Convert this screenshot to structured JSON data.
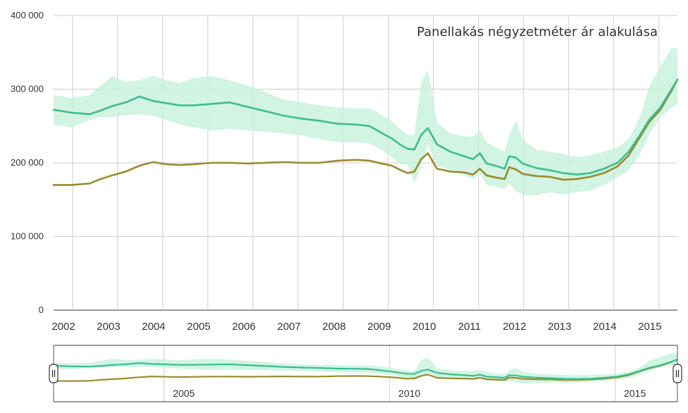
{
  "chart_data": {
    "type": "line",
    "title": "Panellakás négyzetméter ár alakulása",
    "xlabel": "",
    "ylabel": "",
    "xlim": [
      2002,
      2015.83
    ],
    "ylim": [
      0,
      400000
    ],
    "y_ticks": [
      0,
      100000,
      200000,
      300000,
      400000
    ],
    "y_tick_labels": [
      "0",
      "100 000",
      "200 000",
      "300 000",
      "400 000"
    ],
    "x_tick_labels": [
      "2002",
      "2003",
      "2004",
      "2005",
      "2006",
      "2007",
      "2008",
      "2009",
      "2010",
      "2011",
      "2012",
      "2013",
      "2014",
      "2015"
    ],
    "grid": true,
    "series": [
      {
        "name": "green",
        "color": "#3dbd8d",
        "x": [
          2002.0,
          2002.4,
          2002.8,
          2003.0,
          2003.3,
          2003.6,
          2003.9,
          2004.2,
          2004.5,
          2004.8,
          2005.1,
          2005.5,
          2005.9,
          2006.3,
          2006.7,
          2007.1,
          2007.5,
          2007.9,
          2008.3,
          2008.7,
          2009.0,
          2009.2,
          2009.5,
          2009.7,
          2009.85,
          2010.0,
          2010.15,
          2010.3,
          2010.5,
          2010.8,
          2011.1,
          2011.3,
          2011.45,
          2011.6,
          2011.8,
          2012.0,
          2012.1,
          2012.25,
          2012.4,
          2012.7,
          2013.0,
          2013.3,
          2013.6,
          2013.9,
          2014.2,
          2014.5,
          2014.75,
          2015.0,
          2015.2,
          2015.45,
          2015.7,
          2015.83
        ],
        "values": [
          272000,
          268000,
          266000,
          270000,
          277000,
          282000,
          290000,
          284000,
          281000,
          278000,
          278000,
          280000,
          282000,
          276000,
          270000,
          264000,
          260000,
          257000,
          253000,
          252000,
          250000,
          243000,
          233000,
          224000,
          219000,
          218000,
          238000,
          247000,
          225000,
          215000,
          209000,
          205000,
          213000,
          199000,
          196000,
          192000,
          209000,
          207000,
          199000,
          193000,
          190000,
          186000,
          184000,
          186000,
          192000,
          200000,
          215000,
          238000,
          258000,
          275000,
          300000,
          313000
        ]
      },
      {
        "name": "olive",
        "color": "#9b8a2c",
        "x": [
          2002.0,
          2002.4,
          2002.8,
          2003.0,
          2003.3,
          2003.6,
          2003.9,
          2004.2,
          2004.5,
          2004.8,
          2005.1,
          2005.5,
          2005.9,
          2006.3,
          2006.7,
          2007.1,
          2007.5,
          2007.9,
          2008.3,
          2008.7,
          2009.0,
          2009.2,
          2009.5,
          2009.7,
          2009.85,
          2010.0,
          2010.15,
          2010.3,
          2010.5,
          2010.8,
          2011.1,
          2011.3,
          2011.45,
          2011.6,
          2011.8,
          2012.0,
          2012.1,
          2012.25,
          2012.4,
          2012.7,
          2013.0,
          2013.3,
          2013.6,
          2013.9,
          2014.2,
          2014.5,
          2014.75,
          2015.0,
          2015.2,
          2015.45,
          2015.7,
          2015.83
        ],
        "values": [
          170000,
          170000,
          172000,
          177000,
          183000,
          188000,
          196000,
          201000,
          198000,
          197000,
          198000,
          200000,
          200000,
          199000,
          200000,
          201000,
          200000,
          200000,
          203000,
          204000,
          203000,
          200000,
          196000,
          190000,
          186000,
          188000,
          205000,
          213000,
          192000,
          188000,
          187000,
          184000,
          192000,
          183000,
          180000,
          178000,
          194000,
          191000,
          185000,
          182000,
          181000,
          177000,
          178000,
          181000,
          186000,
          195000,
          210000,
          235000,
          255000,
          272000,
          298000,
          313000
        ]
      }
    ],
    "confidence_band": {
      "color": "#c6f1dc",
      "x": [
        2002.0,
        2002.4,
        2002.8,
        2003.0,
        2003.3,
        2003.6,
        2003.9,
        2004.2,
        2004.5,
        2004.8,
        2005.1,
        2005.5,
        2005.9,
        2006.3,
        2006.7,
        2007.1,
        2007.5,
        2007.9,
        2008.3,
        2008.7,
        2009.0,
        2009.2,
        2009.5,
        2009.7,
        2009.85,
        2010.0,
        2010.15,
        2010.3,
        2010.5,
        2010.8,
        2011.1,
        2011.3,
        2011.45,
        2011.6,
        2011.8,
        2012.0,
        2012.1,
        2012.25,
        2012.4,
        2012.7,
        2013.0,
        2013.3,
        2013.6,
        2013.9,
        2014.2,
        2014.5,
        2014.75,
        2015.0,
        2015.2,
        2015.45,
        2015.7,
        2015.83
      ],
      "upper": [
        292000,
        288000,
        292000,
        302000,
        318000,
        310000,
        312000,
        318000,
        312000,
        308000,
        315000,
        318000,
        312000,
        305000,
        296000,
        286000,
        282000,
        278000,
        275000,
        274000,
        274000,
        268000,
        256000,
        245000,
        238000,
        238000,
        310000,
        326000,
        255000,
        240000,
        236000,
        235000,
        245000,
        228000,
        221000,
        215000,
        238000,
        258000,
        231000,
        218000,
        215000,
        212000,
        208000,
        210000,
        215000,
        221000,
        232000,
        262000,
        303000,
        330000,
        356000,
        355000
      ],
      "lower": [
        252000,
        248000,
        258000,
        262000,
        262000,
        265000,
        266000,
        264000,
        258000,
        252000,
        248000,
        244000,
        246000,
        244000,
        242000,
        240000,
        237000,
        232000,
        228000,
        228000,
        226000,
        220000,
        208000,
        198000,
        198000,
        172000,
        196000,
        225000,
        196000,
        190000,
        183000,
        178000,
        186000,
        170000,
        168000,
        164000,
        172000,
        162000,
        156000,
        156000,
        160000,
        157000,
        160000,
        162000,
        170000,
        180000,
        190000,
        212000,
        238000,
        262000,
        275000,
        280000
      ]
    }
  },
  "navigator": {
    "x_tick_labels": [
      "2005",
      "2010",
      "2015"
    ],
    "handle_left_icon": "pause-handle",
    "handle_right_icon": "pause-handle"
  }
}
